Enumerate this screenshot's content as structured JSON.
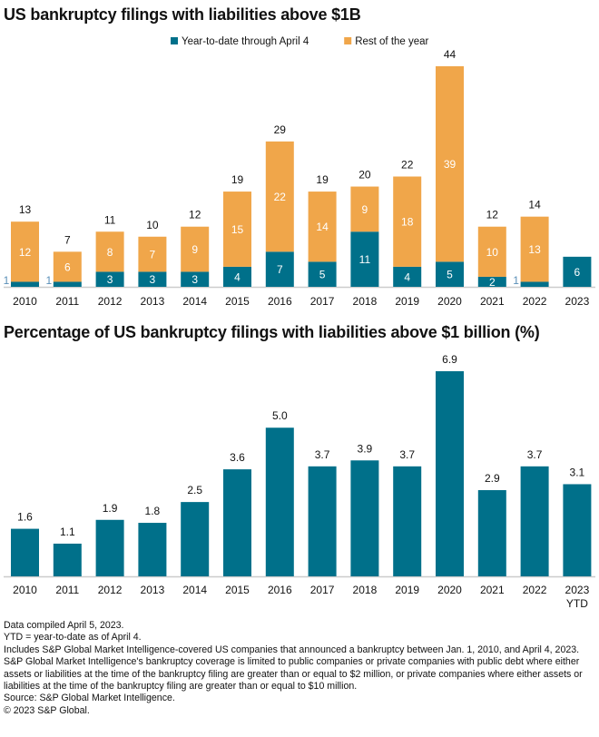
{
  "chart_data": [
    {
      "type": "bar",
      "stacked": true,
      "title": "US bankruptcy filings with liabilities above $1B",
      "categories": [
        "2010",
        "2011",
        "2012",
        "2013",
        "2014",
        "2015",
        "2016",
        "2017",
        "2018",
        "2019",
        "2020",
        "2021",
        "2022",
        "2023"
      ],
      "series": [
        {
          "name": "Year-to-date through April 4",
          "color": "#00708A",
          "values": [
            1,
            1,
            3,
            3,
            3,
            4,
            7,
            5,
            11,
            4,
            5,
            2,
            1,
            6
          ]
        },
        {
          "name": "Rest of the year",
          "color": "#F0A64A",
          "values": [
            12,
            6,
            8,
            7,
            9,
            15,
            22,
            14,
            9,
            18,
            39,
            10,
            13,
            null
          ]
        }
      ],
      "totals": [
        13,
        7,
        11,
        10,
        12,
        19,
        29,
        19,
        20,
        22,
        44,
        12,
        14,
        null
      ],
      "legend": "top-center",
      "ylim": [
        0,
        44
      ],
      "grid": false
    },
    {
      "type": "bar",
      "title": "Percentage of US bankruptcy filings with liabilities above $1 billion (%)",
      "categories": [
        "2010",
        "2011",
        "2012",
        "2013",
        "2014",
        "2015",
        "2016",
        "2017",
        "2018",
        "2019",
        "2020",
        "2021",
        "2022",
        "2023"
      ],
      "category_sublabels": [
        "",
        "",
        "",
        "",
        "",
        "",
        "",
        "",
        "",
        "",
        "",
        "",
        "",
        "YTD"
      ],
      "values": [
        1.6,
        1.1,
        1.9,
        1.8,
        2.5,
        3.6,
        5.0,
        3.7,
        3.9,
        3.7,
        6.9,
        2.9,
        3.7,
        3.1
      ],
      "value_labels": [
        "1.6",
        "1.1",
        "1.9",
        "1.8",
        "2.5",
        "3.6",
        "5.0",
        "3.7",
        "3.9",
        "3.7",
        "6.9",
        "2.9",
        "3.7",
        "3.1"
      ],
      "color": "#00708A",
      "ylim": [
        0,
        6.9
      ],
      "grid": false
    }
  ],
  "notes": [
    "Data compiled April 5, 2023.",
    "YTD = year-to-date as of April 4.",
    "Includes S&P Global Market Intelligence-covered US companies that announced a bankruptcy between Jan. 1, 2010, and April 4, 2023.",
    "S&P Global Market Intelligence's bankruptcy coverage is limited to public companies or private companies with public debt where either assets or liabilities at the time of the bankruptcy filing are greater than or equal to $2 million, or private companies where either assets or liabilities at the time of the bankruptcy filing are greater than or equal to $10 million.",
    "Source: S&P Global Market Intelligence.",
    "© 2023 S&P Global."
  ]
}
